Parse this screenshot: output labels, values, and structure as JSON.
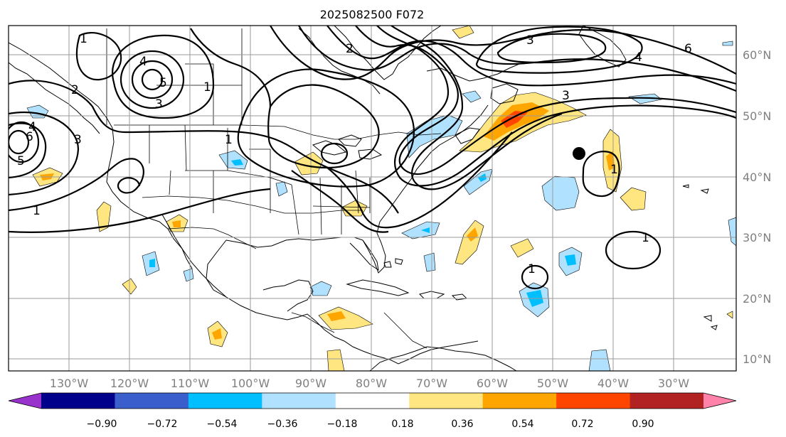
{
  "title": "2025082500 F072",
  "latitude_labels": [
    "60°N",
    "50°N",
    "40°N",
    "30°N",
    "20°N",
    "10°N"
  ],
  "longitude_labels": [
    "130°W",
    "120°W",
    "110°W",
    "100°W",
    "90°W",
    "80°W",
    "70°W",
    "60°W",
    "50°W",
    "40°W",
    "30°W"
  ],
  "contour_labels": [
    "1",
    "2",
    "3",
    "4",
    "5",
    "6",
    "1",
    "3",
    "4",
    "5",
    "6",
    "3",
    "4",
    "1",
    "1",
    "1",
    "1",
    "3",
    "1",
    "2"
  ],
  "colorbar": {
    "tick_labels": [
      "−0.90",
      "−0.72",
      "−0.54",
      "−0.36",
      "−0.18",
      "0.18",
      "0.36",
      "0.54",
      "0.72",
      "0.90"
    ],
    "colors": [
      "#9932cc",
      "#00008b",
      "#3a5fcd",
      "#00bfff",
      "#b0e2ff",
      "#ffffff",
      "#ffe680",
      "#ffa500",
      "#ff4500",
      "#b22222",
      "#ff82ab"
    ]
  },
  "shading_colors": {
    "light_blue": "#b0e2ff",
    "blue": "#00bfff",
    "light_yellow": "#ffe680",
    "orange": "#ffa500",
    "red_orange": "#ff4500"
  }
}
